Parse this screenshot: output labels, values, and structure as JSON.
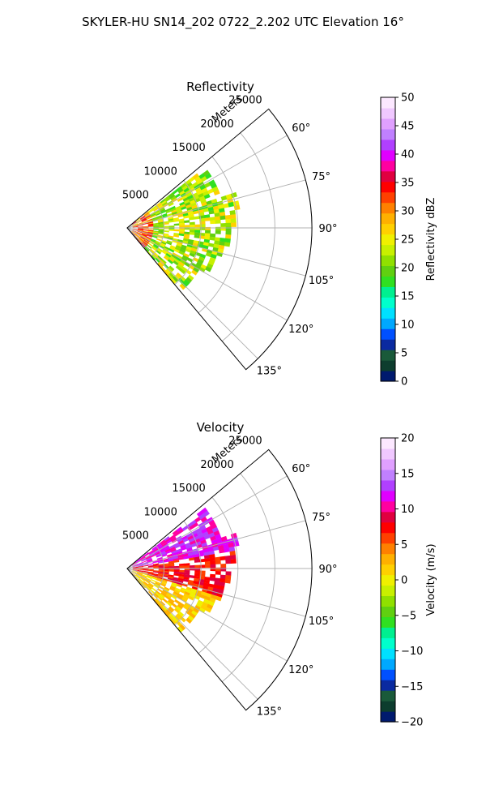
{
  "title": "SKYLER-HU  SN14_202  0722_2.202 UTC Elevation 16°",
  "range_axis_label": "Meters",
  "chart_data": [
    {
      "type": "heatmap",
      "title": "Reflectivity",
      "projection": "polar sector (range vs azimuth)",
      "azimuth_range_deg": [
        50,
        140
      ],
      "azimuth_ticks": [
        "60°",
        "75°",
        "90°",
        "105°",
        "120°",
        "135°"
      ],
      "azimuth_tick_values": [
        60,
        75,
        90,
        105,
        120,
        135
      ],
      "range_ticks": [
        "5000",
        "10000",
        "15000",
        "20000",
        "25000"
      ],
      "range_tick_values": [
        5000,
        10000,
        15000,
        20000,
        25000
      ],
      "range_max": 25000,
      "grid": true,
      "colorbar": {
        "label": "Reflectivity dBZ",
        "min": 0,
        "max": 50,
        "ticks": [
          "0",
          "5",
          "10",
          "15",
          "20",
          "25",
          "30",
          "35",
          "40",
          "45",
          "50"
        ],
        "colors": [
          "#001a6e",
          "#0d3d2e",
          "#1a5a3a",
          "#0a2aa0",
          "#0050ff",
          "#00a8ff",
          "#00e0ff",
          "#00ffcc",
          "#00f090",
          "#30e020",
          "#60d010",
          "#90e000",
          "#c8f000",
          "#f0f000",
          "#ffd000",
          "#ffb000",
          "#ff8000",
          "#ff4000",
          "#ff0000",
          "#e00040",
          "#ff00a0",
          "#e000ff",
          "#b040ff",
          "#c080ff",
          "#e0a0ff",
          "#f0c8ff",
          "#fce8ff"
        ]
      }
    },
    {
      "type": "heatmap",
      "title": "Velocity",
      "projection": "polar sector (range vs azimuth)",
      "azimuth_range_deg": [
        50,
        140
      ],
      "azimuth_ticks": [
        "60°",
        "75°",
        "90°",
        "105°",
        "120°",
        "135°"
      ],
      "azimuth_tick_values": [
        60,
        75,
        90,
        105,
        120,
        135
      ],
      "range_ticks": [
        "5000",
        "10000",
        "15000",
        "20000",
        "25000"
      ],
      "range_tick_values": [
        5000,
        10000,
        15000,
        20000,
        25000
      ],
      "range_max": 25000,
      "grid": true,
      "colorbar": {
        "label": "Velocity (m/s)",
        "min": -20,
        "max": 20,
        "ticks": [
          "−20",
          "−15",
          "−10",
          "−5",
          "0",
          "5",
          "10",
          "15",
          "20"
        ],
        "colors": [
          "#001a6e",
          "#0d3d2e",
          "#1a5a3a",
          "#0a2aa0",
          "#0050ff",
          "#00a8ff",
          "#00e0ff",
          "#00ffcc",
          "#00f090",
          "#30e020",
          "#60d010",
          "#90e000",
          "#c8f000",
          "#f0f000",
          "#ffd000",
          "#ffb000",
          "#ff8000",
          "#ff4000",
          "#ff0000",
          "#e00040",
          "#ff00a0",
          "#e000ff",
          "#b040ff",
          "#c080ff",
          "#e0a0ff",
          "#f0c8ff",
          "#fce8ff"
        ]
      }
    }
  ]
}
